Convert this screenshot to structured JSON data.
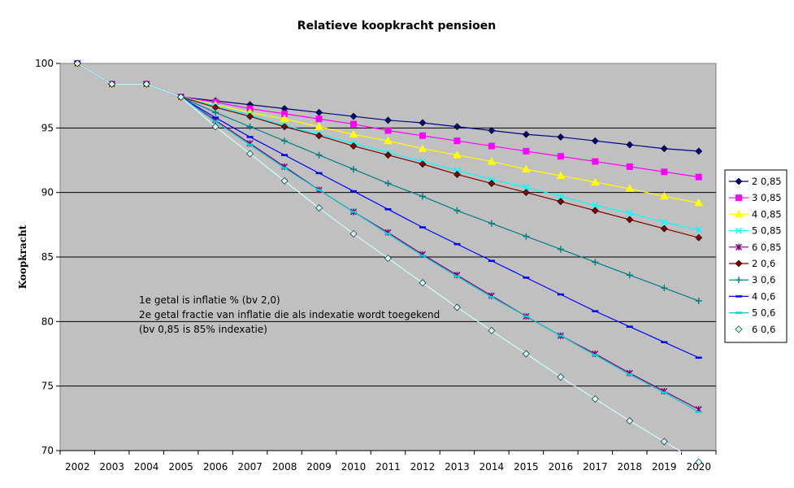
{
  "chart_data": {
    "type": "line",
    "title": "Relatieve koopkracht pensioen",
    "ylabel": "Koopkracht",
    "xlabel": "",
    "ylim": [
      70,
      100
    ],
    "yticks": [
      70,
      75,
      80,
      85,
      90,
      95,
      100
    ],
    "categories": [
      "2002",
      "2003",
      "2004",
      "2005",
      "2006",
      "2007",
      "2008",
      "2009",
      "2010",
      "2011",
      "2012",
      "2013",
      "2014",
      "2015",
      "2016",
      "2017",
      "2018",
      "2019",
      "2020"
    ],
    "grid": true,
    "legend_position": "right",
    "plot_background": "#c0c0c0",
    "annotation": [
      "1e getal is inflatie % (bv 2,0)",
      "2e getal fractie van inflatie die als indexatie wordt toegekend",
      "(bv 0,85 is 85% indexatie)"
    ],
    "series": [
      {
        "name": "2 0,85",
        "color": "#000080",
        "marker": "diamond",
        "values": [
          100,
          98.4,
          98.4,
          97.4,
          97.1,
          96.8,
          96.5,
          96.2,
          95.9,
          95.6,
          95.4,
          95.1,
          94.8,
          94.5,
          94.3,
          94.0,
          93.7,
          93.4,
          93.2
        ]
      },
      {
        "name": "3 0,85",
        "color": "#ff00ff",
        "marker": "square",
        "values": [
          100,
          98.4,
          98.4,
          97.4,
          97.0,
          96.5,
          96.1,
          95.7,
          95.3,
          94.8,
          94.4,
          94.0,
          93.6,
          93.2,
          92.8,
          92.4,
          92.0,
          91.6,
          91.2
        ]
      },
      {
        "name": "4 0,85",
        "color": "#ffff00",
        "marker": "triangle",
        "values": [
          100,
          98.4,
          98.4,
          97.4,
          96.8,
          96.2,
          95.7,
          95.1,
          94.5,
          94.0,
          93.4,
          92.9,
          92.4,
          91.8,
          91.3,
          90.8,
          90.3,
          89.7,
          89.2
        ]
      },
      {
        "name": "5 0,85",
        "color": "#00ffff",
        "marker": "x",
        "values": [
          100,
          98.4,
          98.4,
          97.4,
          96.7,
          96.0,
          95.2,
          94.5,
          93.8,
          93.1,
          92.4,
          91.7,
          91.0,
          90.4,
          89.7,
          89.0,
          88.4,
          87.7,
          87.1
        ]
      },
      {
        "name": "6 0,85",
        "color": "#800080",
        "marker": "star",
        "values": [
          100,
          98.4,
          98.4,
          97.4,
          95.6,
          93.8,
          92.0,
          90.2,
          88.5,
          86.9,
          85.2,
          83.6,
          82.0,
          80.4,
          78.9,
          77.5,
          76.0,
          74.6,
          73.2
        ]
      },
      {
        "name": "2 0,6",
        "color": "#800000",
        "marker": "diamond",
        "values": [
          100,
          98.4,
          98.4,
          97.4,
          96.6,
          95.9,
          95.1,
          94.4,
          93.6,
          92.9,
          92.2,
          91.4,
          90.7,
          90.0,
          89.3,
          88.6,
          87.9,
          87.2,
          86.5
        ]
      },
      {
        "name": "3 0,6",
        "color": "#008080",
        "marker": "plus",
        "values": [
          100,
          98.4,
          98.4,
          97.4,
          96.2,
          95.1,
          94.0,
          92.9,
          91.8,
          90.7,
          89.7,
          88.6,
          87.6,
          86.6,
          85.6,
          84.6,
          83.6,
          82.6,
          81.6
        ]
      },
      {
        "name": "4 0,6",
        "color": "#0000ff",
        "marker": "dash",
        "values": [
          100,
          98.4,
          98.4,
          97.4,
          95.8,
          94.3,
          92.9,
          91.5,
          90.1,
          88.7,
          87.3,
          86.0,
          84.7,
          83.4,
          82.1,
          80.8,
          79.6,
          78.4,
          77.2
        ]
      },
      {
        "name": "5 0,6",
        "color": "#00cccc",
        "marker": "dash",
        "values": [
          100,
          98.4,
          98.4,
          97.4,
          95.5,
          93.7,
          91.9,
          90.2,
          88.5,
          86.8,
          85.1,
          83.5,
          81.9,
          80.4,
          78.9,
          77.4,
          75.9,
          74.5,
          73.0
        ]
      },
      {
        "name": "6 0,6",
        "color": "#ccffff",
        "marker": "diamond",
        "values": [
          100,
          98.4,
          98.4,
          97.4,
          95.1,
          93.0,
          90.9,
          88.8,
          86.8,
          84.9,
          83.0,
          81.1,
          79.3,
          77.5,
          75.7,
          74.0,
          72.3,
          70.7,
          69.1
        ]
      }
    ]
  }
}
